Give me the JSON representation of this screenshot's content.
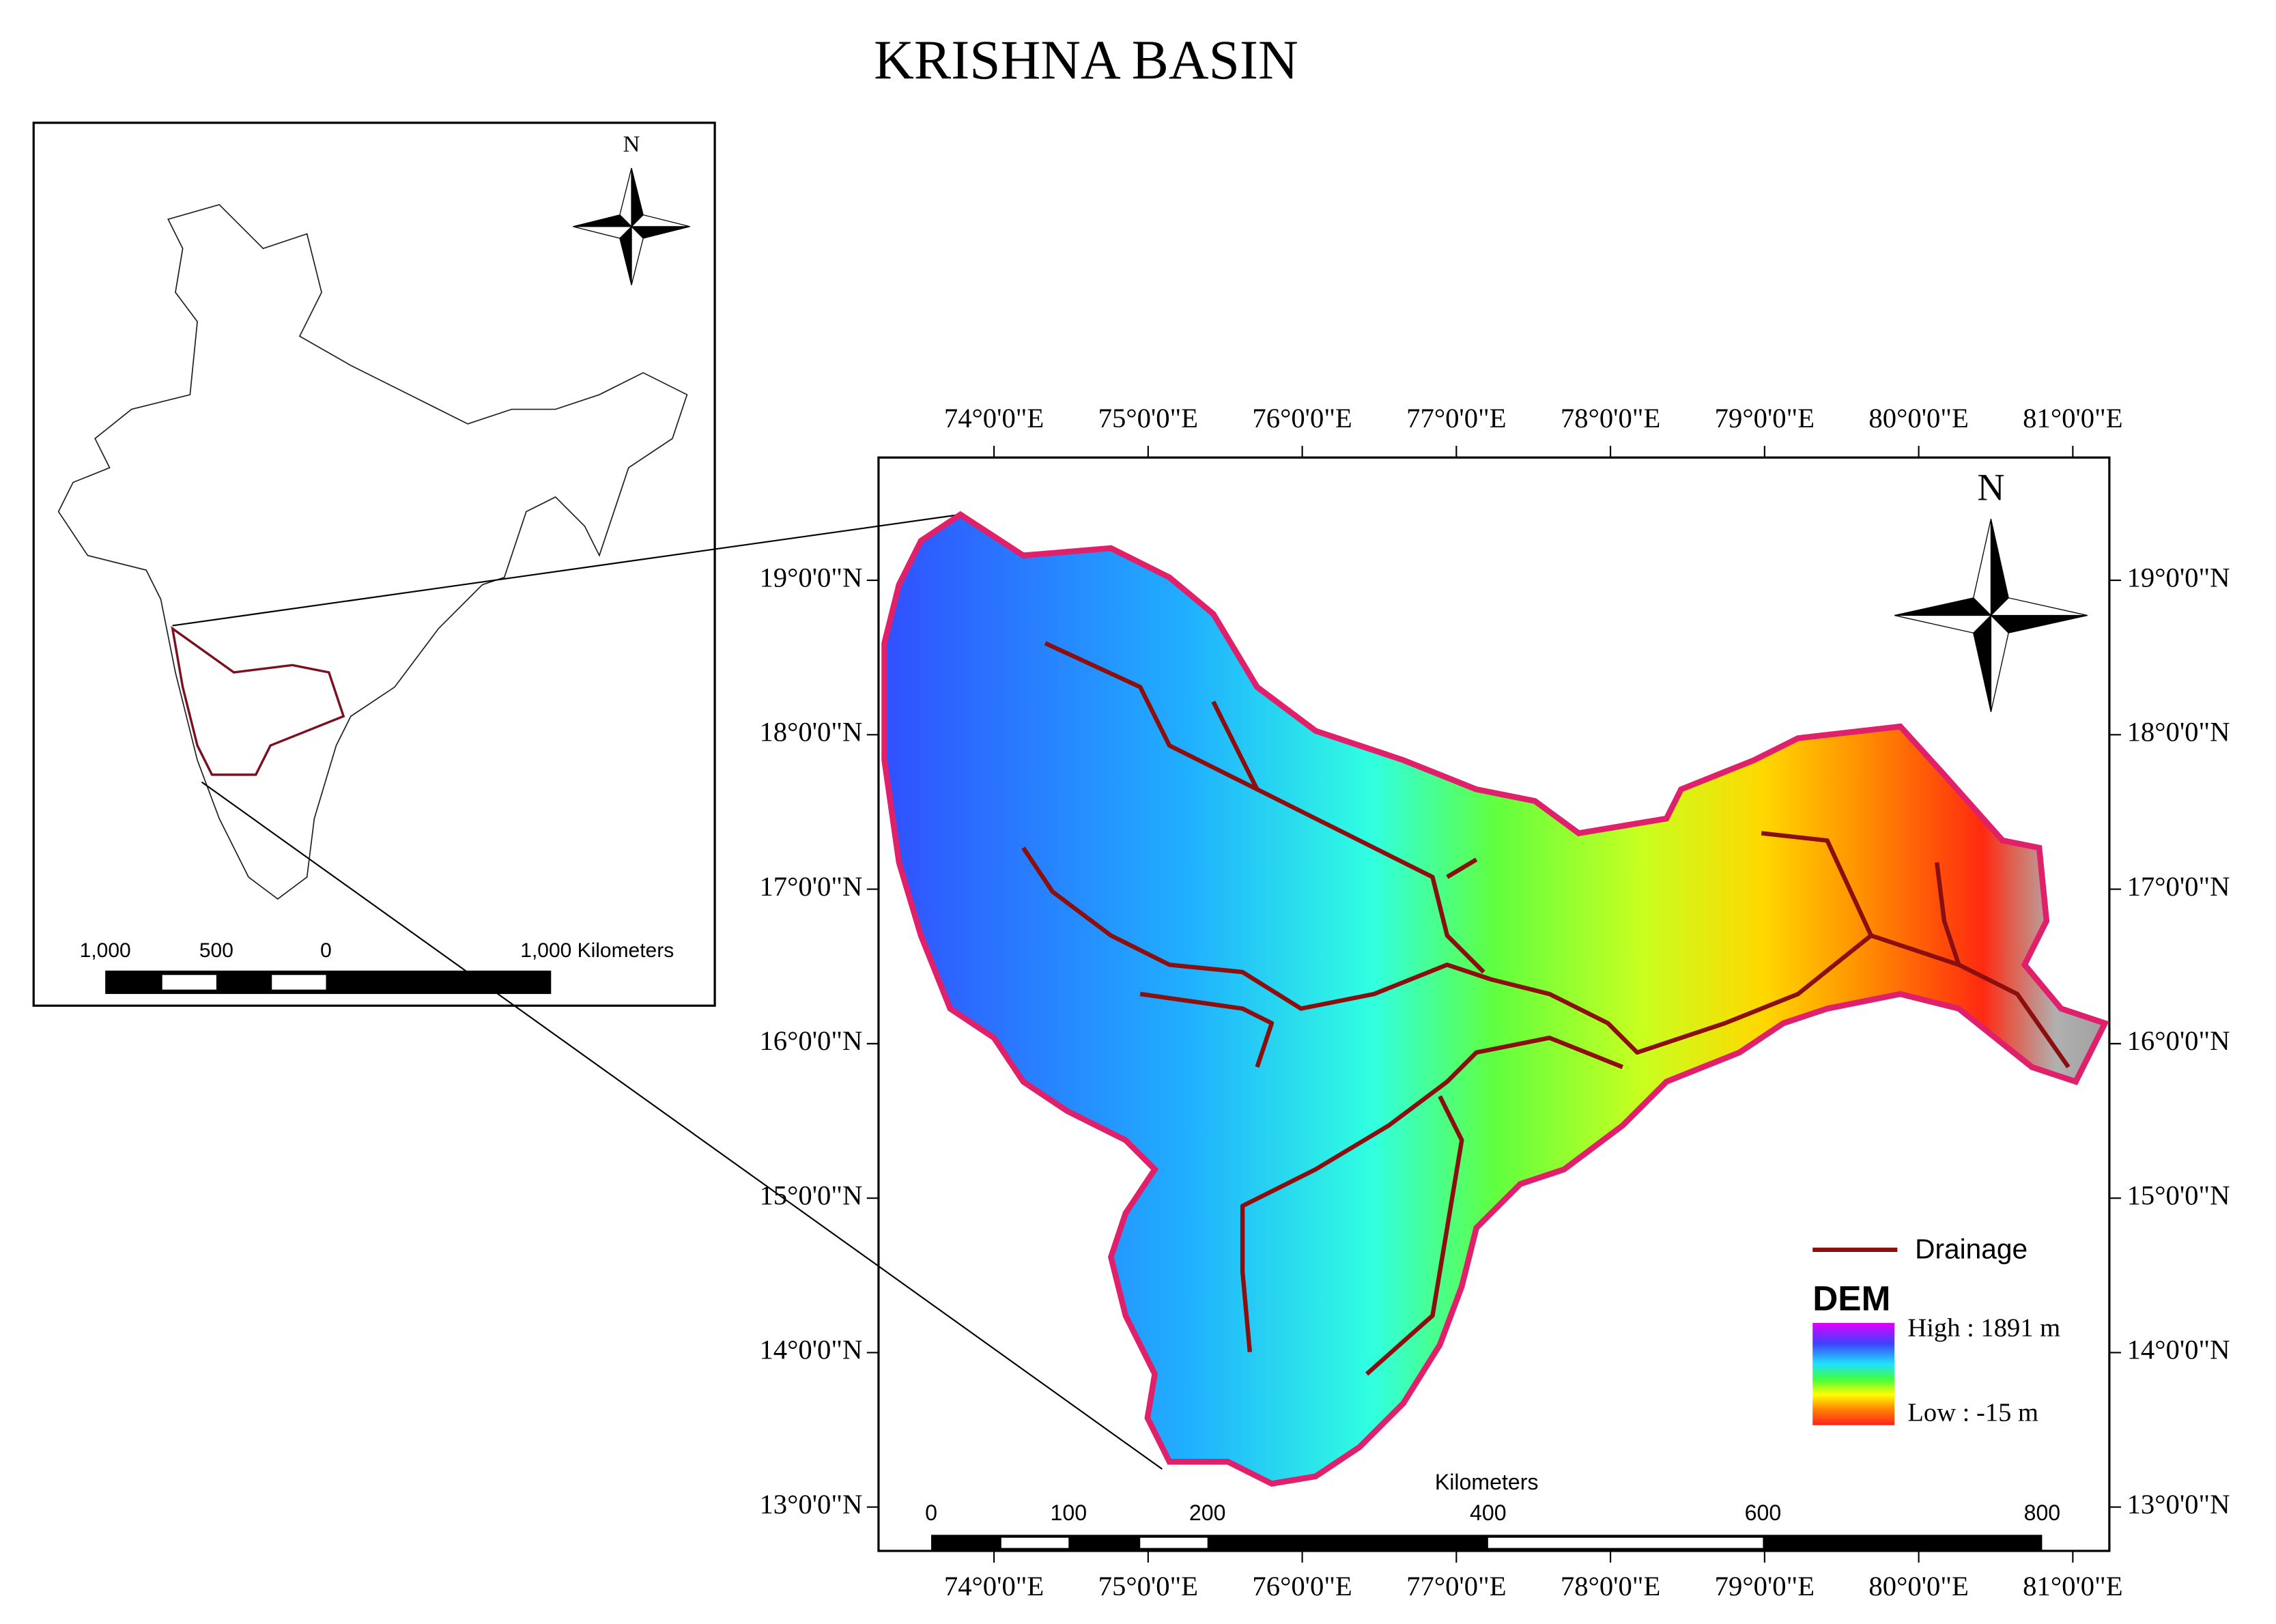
{
  "title": "KRISHNA BASIN",
  "inset": {
    "north": "N",
    "scale_labels": [
      "1,000",
      "500",
      "0",
      "1,000 Kilometers"
    ]
  },
  "main_map": {
    "north": "N",
    "lon_ticks": [
      {
        "value": 74,
        "label": "74°0'0\"E"
      },
      {
        "value": 75,
        "label": "75°0'0\"E"
      },
      {
        "value": 76,
        "label": "76°0'0\"E"
      },
      {
        "value": 77,
        "label": "77°0'0\"E"
      },
      {
        "value": 78,
        "label": "78°0'0\"E"
      },
      {
        "value": 79,
        "label": "79°0'0\"E"
      },
      {
        "value": 80,
        "label": "80°0'0\"E"
      },
      {
        "value": 81,
        "label": "81°0'0\"E"
      }
    ],
    "lat_ticks": [
      {
        "value": 19,
        "label": "19°0'0\"N"
      },
      {
        "value": 18,
        "label": "18°0'0\"N"
      },
      {
        "value": 17,
        "label": "17°0'0\"N"
      },
      {
        "value": 16,
        "label": "16°0'0\"N"
      },
      {
        "value": 15,
        "label": "15°0'0\"N"
      },
      {
        "value": 14,
        "label": "14°0'0\"N"
      },
      {
        "value": 13,
        "label": "13°0'0\"N"
      }
    ],
    "scale_labels": [
      "0",
      "100",
      "200",
      "400",
      "600",
      "800"
    ],
    "scale_unit": "Kilometers"
  },
  "legend": {
    "drainage": "Drainage",
    "dem": "DEM",
    "high": "High : 1891 m",
    "low": "Low : -15 m"
  }
}
